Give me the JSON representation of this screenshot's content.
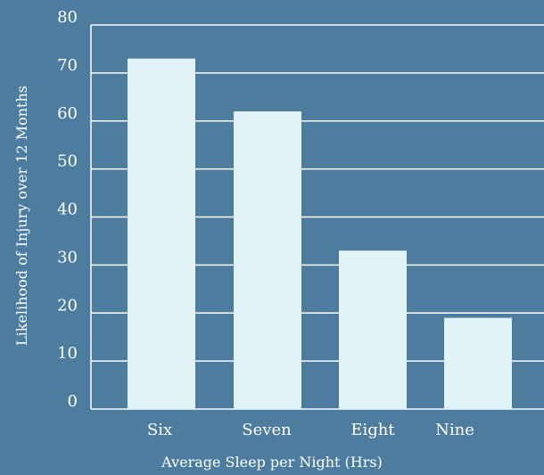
{
  "chart_data": {
    "type": "bar",
    "title": "",
    "xlabel": "Average Sleep per Night (Hrs)",
    "ylabel": "Likelihood of Injury over 12 Months",
    "categories": [
      "Six",
      "Seven",
      "Eight",
      "Nine"
    ],
    "values": [
      73,
      62,
      33,
      19
    ],
    "ylim": [
      0,
      80
    ],
    "yticks": [
      0,
      10,
      20,
      30,
      40,
      50,
      60,
      70,
      80
    ],
    "grid": true,
    "legend": "none"
  },
  "colors": {
    "background": "#4c7c9e",
    "bar": "#e2f3f7",
    "gridline": "#ffffff",
    "text": "#ffffff"
  }
}
